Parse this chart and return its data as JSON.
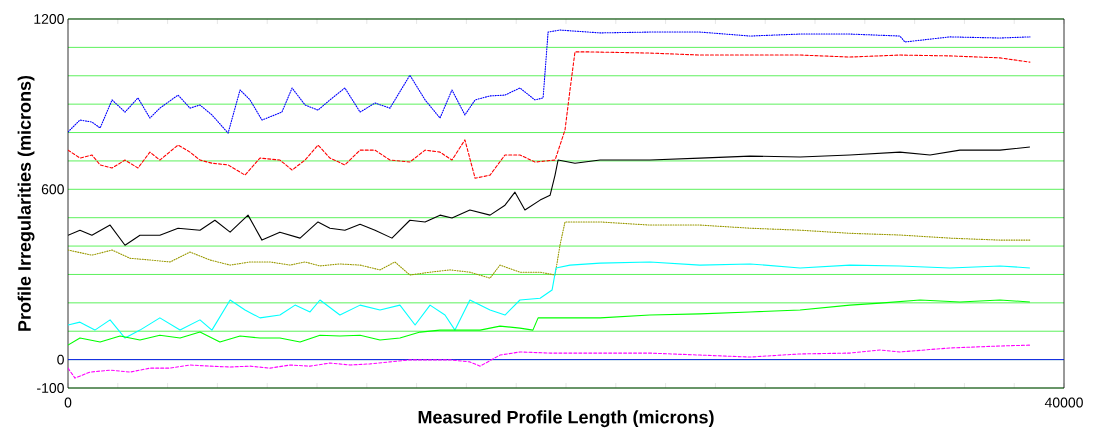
{
  "chart_data": {
    "type": "line",
    "xlabel": "Measured Profile Length (microns)",
    "ylabel": "Profile Irregularities (microns)",
    "xlim": [
      0,
      40000
    ],
    "ylim": [
      -100,
      1200
    ],
    "xticks": [
      {
        "value": 0,
        "label": "0"
      },
      {
        "value": 2000,
        "label": null
      },
      {
        "value": 4000,
        "label": null
      },
      {
        "value": 6000,
        "label": null
      },
      {
        "value": 8000,
        "label": null
      },
      {
        "value": 10000,
        "label": null
      },
      {
        "value": 12000,
        "label": null
      },
      {
        "value": 14000,
        "label": null
      },
      {
        "value": 16000,
        "label": null
      },
      {
        "value": 18000,
        "label": null
      },
      {
        "value": 20000,
        "label": null
      },
      {
        "value": 22000,
        "label": null
      },
      {
        "value": 24000,
        "label": null
      },
      {
        "value": 26000,
        "label": null
      },
      {
        "value": 28000,
        "label": null
      },
      {
        "value": 30000,
        "label": null
      },
      {
        "value": 32000,
        "label": null
      },
      {
        "value": 34000,
        "label": null
      },
      {
        "value": 36000,
        "label": null
      },
      {
        "value": 38000,
        "label": null
      },
      {
        "value": 40000,
        "label": "40000"
      }
    ],
    "yticks": [
      -100,
      0,
      {
        "value": 100,
        "label": null
      },
      {
        "value": 200,
        "label": null
      },
      {
        "value": 300,
        "label": null
      },
      {
        "value": 400,
        "label": null
      },
      {
        "value": 500,
        "label": null
      },
      600,
      {
        "value": 700,
        "label": null
      },
      {
        "value": 800,
        "label": null
      },
      {
        "value": 900,
        "label": null
      },
      {
        "value": 1000,
        "label": null
      },
      {
        "value": 1100,
        "label": null
      },
      1200
    ],
    "grid": "y",
    "ref_lines": [
      {
        "axis": "y",
        "value": 0,
        "color": "#0000ff"
      }
    ],
    "series": [
      {
        "type": "line",
        "color": "#0000ff",
        "line_style": "dotted",
        "x": [
          0,
          480,
          960,
          1290,
          1770,
          2290,
          2810,
          3290,
          3690,
          4420,
          4900,
          5300,
          5780,
          6430,
          6910,
          7310,
          7790,
          8590,
          9000,
          9520,
          10040,
          10520,
          11120,
          11730,
          12330,
          12930,
          13730,
          14340,
          14940,
          15420,
          15940,
          16350,
          16950,
          17550,
          18150,
          18750,
          19080,
          19280,
          19760,
          21370,
          23370,
          25380,
          27390,
          29400,
          31400,
          33410,
          33610,
          35420,
          37430,
          38630
        ],
        "values": [
          802,
          844,
          837,
          816,
          915,
          872,
          922,
          851,
          886,
          932,
          886,
          897,
          862,
          798,
          950,
          915,
          844,
          872,
          957,
          897,
          879,
          915,
          957,
          872,
          904,
          886,
          1002,
          915,
          851,
          950,
          862,
          915,
          929,
          932,
          957,
          915,
          922,
          1154,
          1161,
          1151,
          1154,
          1154,
          1140,
          1147,
          1147,
          1140,
          1119,
          1137,
          1133,
          1137
        ]
      },
      {
        "type": "line",
        "color": "#ff0000",
        "line_style": "dashed",
        "x": [
          0,
          480,
          960,
          1290,
          1770,
          2290,
          2810,
          3290,
          3690,
          4420,
          4900,
          5300,
          5780,
          6430,
          7110,
          7710,
          8510,
          9000,
          9520,
          10040,
          10520,
          11120,
          11730,
          12330,
          12930,
          13730,
          14340,
          14940,
          15420,
          15940,
          16350,
          16950,
          17550,
          18150,
          18750,
          19560,
          19760,
          19960,
          20160,
          20360,
          20960,
          23370,
          25380,
          27390,
          29400,
          31400,
          33410,
          35420,
          37430,
          38630
        ],
        "values": [
          738,
          710,
          721,
          686,
          675,
          703,
          675,
          731,
          703,
          756,
          731,
          703,
          692,
          686,
          650,
          710,
          703,
          668,
          703,
          756,
          710,
          686,
          738,
          738,
          703,
          696,
          738,
          731,
          703,
          774,
          639,
          650,
          721,
          721,
          696,
          703,
          756,
          809,
          950,
          1084,
          1084,
          1080,
          1073,
          1073,
          1073,
          1066,
          1073,
          1070,
          1063,
          1048
        ]
      },
      {
        "type": "line",
        "color": "#000000",
        "line_style": "solid",
        "x": [
          0,
          480,
          960,
          1690,
          2290,
          2890,
          3690,
          4420,
          5300,
          5900,
          6510,
          7230,
          7790,
          8510,
          9320,
          10040,
          10520,
          11120,
          11730,
          12330,
          13010,
          13730,
          14340,
          14940,
          15420,
          16140,
          16950,
          17550,
          17950,
          18350,
          18960,
          19360,
          19560,
          19680,
          20360,
          21370,
          23370,
          25380,
          27390,
          29400,
          31400,
          33410,
          34620,
          35820,
          37430,
          38630
        ],
        "values": [
          438,
          456,
          438,
          474,
          403,
          438,
          438,
          463,
          456,
          491,
          449,
          509,
          421,
          449,
          428,
          485,
          463,
          456,
          477,
          456,
          428,
          491,
          485,
          509,
          499,
          527,
          509,
          544,
          590,
          527,
          562,
          579,
          650,
          703,
          692,
          703,
          703,
          710,
          717,
          714,
          721,
          731,
          721,
          738,
          738,
          749
        ]
      },
      {
        "type": "line",
        "color": "#999900",
        "line_style": "dotted",
        "x": [
          0,
          960,
          1770,
          2490,
          3290,
          4100,
          4900,
          5700,
          6510,
          7310,
          8110,
          8920,
          9520,
          10120,
          10920,
          11730,
          12530,
          13130,
          13730,
          14540,
          15340,
          16140,
          16950,
          17350,
          18150,
          18960,
          19560,
          19760,
          19960,
          21370,
          23370,
          25380,
          27390,
          29400,
          31400,
          33410,
          35420,
          37430,
          38630
        ],
        "values": [
          386,
          368,
          386,
          357,
          351,
          344,
          379,
          351,
          333,
          344,
          344,
          333,
          344,
          330,
          337,
          333,
          316,
          344,
          298,
          308,
          316,
          308,
          287,
          333,
          308,
          308,
          298,
          404,
          485,
          485,
          474,
          474,
          463,
          456,
          445,
          439,
          428,
          421,
          421
        ]
      },
      {
        "type": "line",
        "color": "#00ffff",
        "line_style": "solid",
        "x": [
          0,
          480,
          1080,
          1690,
          2290,
          2890,
          3690,
          4500,
          5300,
          5780,
          6510,
          7110,
          7710,
          8510,
          9120,
          9720,
          10120,
          10920,
          11730,
          12530,
          13330,
          13940,
          14540,
          15140,
          15540,
          16140,
          16950,
          17550,
          18150,
          18960,
          19440,
          19600,
          20160,
          21370,
          23370,
          25380,
          27390,
          29400,
          31400,
          33410,
          35420,
          37430,
          38630
        ],
        "values": [
          122,
          132,
          104,
          140,
          76,
          104,
          147,
          104,
          140,
          104,
          210,
          175,
          147,
          157,
          192,
          168,
          210,
          157,
          192,
          175,
          192,
          122,
          192,
          157,
          104,
          210,
          175,
          157,
          210,
          216,
          245,
          323,
          333,
          340,
          344,
          333,
          337,
          323,
          333,
          330,
          323,
          330,
          323
        ]
      },
      {
        "type": "line",
        "color": "#00ff00",
        "line_style": "solid",
        "x": [
          0,
          480,
          1290,
          2090,
          2890,
          3690,
          4500,
          5300,
          6100,
          6910,
          7710,
          8510,
          9320,
          10120,
          10920,
          11730,
          12530,
          13330,
          14140,
          14940,
          15740,
          16550,
          17350,
          18150,
          18670,
          18880,
          19760,
          21370,
          23370,
          25380,
          27390,
          29400,
          31400,
          32610,
          34220,
          35820,
          37430,
          38630
        ],
        "values": [
          51,
          76,
          62,
          83,
          69,
          86,
          76,
          97,
          62,
          83,
          76,
          76,
          62,
          86,
          83,
          86,
          69,
          76,
          97,
          104,
          104,
          104,
          118,
          111,
          104,
          147,
          147,
          147,
          157,
          161,
          168,
          175,
          192,
          199,
          210,
          203,
          210,
          203
        ]
      },
      {
        "type": "line",
        "color": "#ff00ff",
        "line_style": "dashed",
        "x": [
          0,
          280,
          880,
          1690,
          2490,
          3290,
          4100,
          4900,
          5700,
          6510,
          7310,
          8110,
          8920,
          9720,
          10520,
          11330,
          12130,
          12930,
          13730,
          14540,
          15340,
          16140,
          16550,
          17350,
          18150,
          19360,
          21370,
          23370,
          25380,
          27390,
          29400,
          31400,
          32610,
          33410,
          35420,
          37430,
          38630
        ],
        "values": [
          -30,
          -65,
          -44,
          -37,
          -44,
          -30,
          -30,
          -19,
          -23,
          -26,
          -23,
          -30,
          -19,
          -23,
          -12,
          -19,
          -15,
          -8,
          -1,
          -1,
          -1,
          -8,
          -23,
          16,
          27,
          23,
          23,
          23,
          16,
          9,
          20,
          23,
          34,
          27,
          41,
          48,
          51
        ]
      }
    ]
  }
}
